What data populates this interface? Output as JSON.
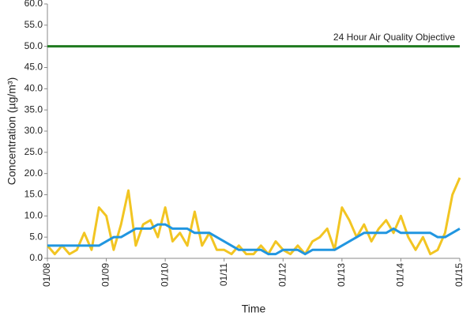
{
  "chart_data": {
    "type": "line",
    "ylabel": "Concentration (µg/m³)",
    "xlabel": "Time",
    "xlim": [
      0,
      7
    ],
    "xticks": [
      {
        "value": 0,
        "label": "01/08"
      },
      {
        "value": 1,
        "label": "01/09"
      },
      {
        "value": 2,
        "label": "01/10"
      },
      {
        "value": 3,
        "label": "01/11"
      },
      {
        "value": 4,
        "label": "01/12"
      },
      {
        "value": 5,
        "label": "01/13"
      },
      {
        "value": 6,
        "label": "01/14"
      },
      {
        "value": 7,
        "label": "01/15"
      }
    ],
    "ylim": [
      0,
      60
    ],
    "yticks": [
      {
        "value": 0,
        "label": "0.0"
      },
      {
        "value": 5,
        "label": "5.0"
      },
      {
        "value": 10,
        "label": "10.0"
      },
      {
        "value": 15,
        "label": "15.0"
      },
      {
        "value": 20,
        "label": "20.0"
      },
      {
        "value": 25,
        "label": "25.0"
      },
      {
        "value": 30,
        "label": "30.0"
      },
      {
        "value": 35,
        "label": "35.0"
      },
      {
        "value": 40,
        "label": "40.0"
      },
      {
        "value": 45,
        "label": "45.0"
      },
      {
        "value": 50,
        "label": "50.0"
      },
      {
        "value": 55,
        "label": "55.0"
      },
      {
        "value": 60,
        "label": "60.0"
      }
    ],
    "x": [
      0,
      0.125,
      0.25,
      0.375,
      0.5,
      0.625,
      0.75,
      0.875,
      1,
      1.125,
      1.25,
      1.375,
      1.5,
      1.625,
      1.75,
      1.875,
      2,
      2.125,
      2.25,
      2.375,
      2.5,
      2.625,
      2.75,
      2.875,
      3,
      3.125,
      3.25,
      3.375,
      3.5,
      3.625,
      3.75,
      3.875,
      4,
      4.125,
      4.25,
      4.375,
      4.5,
      4.625,
      4.75,
      4.875,
      5,
      5.125,
      5.25,
      5.375,
      5.5,
      5.625,
      5.75,
      5.875,
      6,
      6.125,
      6.25,
      6.375,
      6.5,
      6.625,
      6.75,
      6.875,
      7
    ],
    "series": [
      {
        "color": "#f2c522",
        "values": [
          3,
          1,
          3,
          1,
          2,
          6,
          2,
          12,
          10,
          2,
          8,
          16,
          3,
          8,
          9,
          5,
          12,
          4,
          6,
          3,
          11,
          3,
          6,
          2,
          2,
          1,
          3,
          1,
          1,
          3,
          1,
          4,
          2,
          1,
          3,
          1,
          4,
          5,
          7,
          2,
          12,
          9,
          5,
          8,
          4,
          7,
          9,
          6,
          10,
          5,
          2,
          5,
          1,
          2,
          6,
          15,
          19
        ]
      },
      {
        "color": "#2196e0",
        "values": [
          3,
          3,
          3,
          3,
          3,
          3,
          3,
          3,
          4,
          5,
          5,
          6,
          7,
          7,
          7,
          8,
          8,
          7,
          7,
          7,
          6,
          6,
          6,
          5,
          4,
          3,
          2,
          2,
          2,
          2,
          1,
          1,
          2,
          2,
          2,
          1,
          2,
          2,
          2,
          2,
          3,
          4,
          5,
          6,
          6,
          6,
          6,
          7,
          6,
          6,
          6,
          6,
          6,
          5,
          5,
          6,
          7
        ]
      }
    ],
    "objective": {
      "label": "24 Hour Air Quality Objective",
      "value": 50,
      "color": "#1f7a1f"
    }
  }
}
